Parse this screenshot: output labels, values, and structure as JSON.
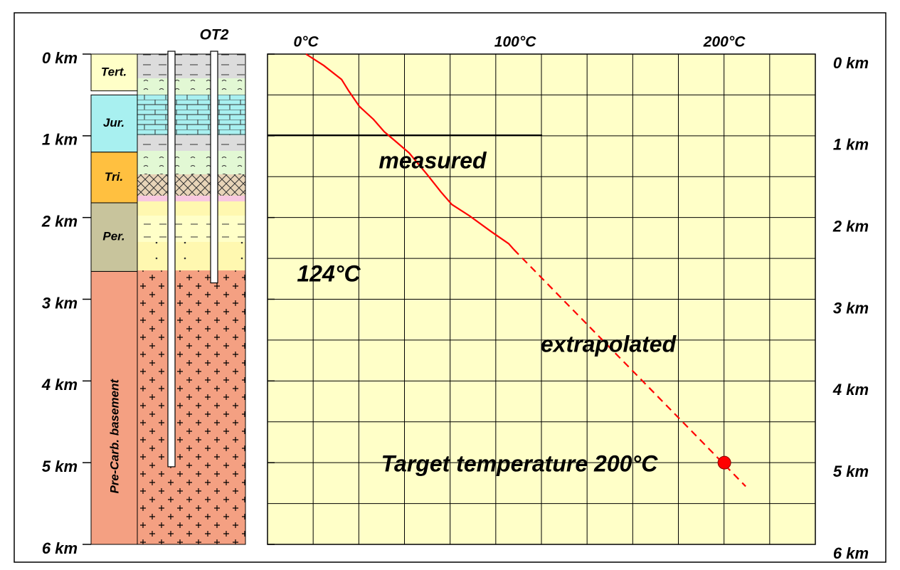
{
  "chart_data": {
    "type": "line",
    "xlim": [
      -18.4,
      243.5
    ],
    "ylim": [
      0,
      6
    ],
    "y_inverted": true,
    "xticks": [
      {
        "value": 0,
        "label": "0°C"
      },
      {
        "value": 100,
        "label": "100°C"
      },
      {
        "value": 200,
        "label": "200°C"
      }
    ],
    "yticks": [
      {
        "value": 0,
        "label": "0 km"
      },
      {
        "value": 1,
        "label": "1 km"
      },
      {
        "value": 2,
        "label": "2 km"
      },
      {
        "value": 3,
        "label": "3 km"
      },
      {
        "value": 4,
        "label": "4 km"
      },
      {
        "value": 5,
        "label": "5 km"
      },
      {
        "value": 6,
        "label": "6 km"
      }
    ],
    "series": [
      {
        "name": "measured",
        "color": "#ff0000",
        "dashed": false,
        "x": [
          0,
          8.5,
          17,
          20.4,
          25.5,
          32.3,
          37.4,
          42.5,
          49.3,
          57.8,
          64.6,
          69.7,
          78.2,
          88.4,
          96.9,
          99.3
        ],
        "values": [
          0,
          0.14,
          0.31,
          0.45,
          0.64,
          0.8,
          0.95,
          1.06,
          1.21,
          1.47,
          1.69,
          1.84,
          1.98,
          2.17,
          2.32,
          2.39
        ]
      },
      {
        "name": "extrapolated",
        "color": "#ff0000",
        "dashed": true,
        "x": [
          99.3,
          210.2
        ],
        "values": [
          2.39,
          5.29
        ]
      }
    ],
    "target": {
      "label": "Target temperature 200°C",
      "x": 200,
      "y": 5,
      "color": "#ff0000"
    },
    "annotation": "124°C",
    "formations": [
      {
        "name": "Tert.",
        "top": 0,
        "bottom": 0.45,
        "color": "#ffffc8"
      },
      {
        "name": "Jur.",
        "top": 0.5,
        "bottom": 1.2,
        "color": "#a8f0f0"
      },
      {
        "name": "Tri.",
        "top": 1.2,
        "bottom": 1.82,
        "color": "#ffc040"
      },
      {
        "name": "Per.",
        "top": 1.82,
        "bottom": 2.66,
        "color": "#c8c49c"
      },
      {
        "name": "Pre-Carb. basement",
        "top": 2.66,
        "bottom": 6,
        "color": "#f4a082"
      }
    ],
    "wells": [
      {
        "depth": 5.05
      },
      {
        "name": "OT2",
        "depth": 2.8
      }
    ]
  }
}
